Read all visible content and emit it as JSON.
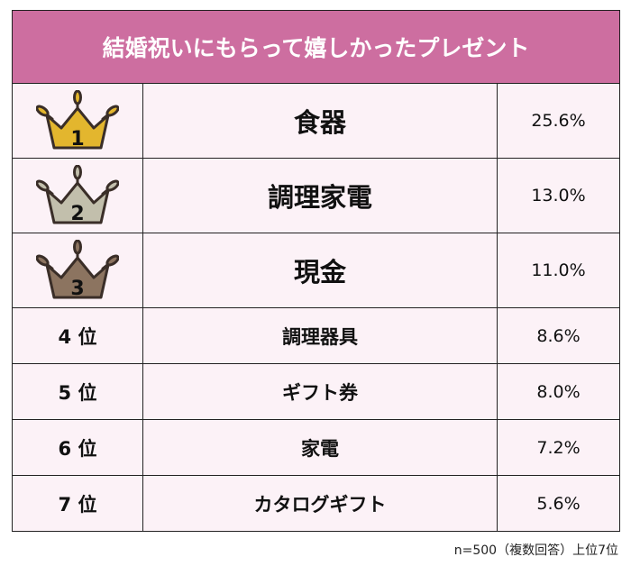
{
  "title": "結婚祝いにもらって嬉しかったプレゼント",
  "colors": {
    "header": "#cd6ea0",
    "cell_bg": "#fcf2f7",
    "gold": "#e3b62e",
    "silver": "#c2bfac",
    "bronze": "#8c7460"
  },
  "rows": [
    {
      "rank": "1",
      "rank_icon": "crown-gold-icon",
      "item": "食器",
      "percent": "25.6%"
    },
    {
      "rank": "2",
      "rank_icon": "crown-silver-icon",
      "item": "調理家電",
      "percent": "13.0%"
    },
    {
      "rank": "3",
      "rank_icon": "crown-bronze-icon",
      "item": "現金",
      "percent": "11.0%"
    },
    {
      "rank": "4 位",
      "item": "調理器具",
      "percent": "8.6%"
    },
    {
      "rank": "5 位",
      "item": "ギフト券",
      "percent": "8.0%"
    },
    {
      "rank": "6 位",
      "item": "家電",
      "percent": "7.2%"
    },
    {
      "rank": "7 位",
      "item": "カタログギフト",
      "percent": "5.6%"
    }
  ],
  "note": "n=500（複数回答）上位7位",
  "chart_data": {
    "type": "table",
    "title": "結婚祝いにもらって嬉しかったプレゼント",
    "categories": [
      "食器",
      "調理家電",
      "現金",
      "調理器具",
      "ギフト券",
      "家電",
      "カタログギフト"
    ],
    "values": [
      25.6,
      13.0,
      11.0,
      8.6,
      8.0,
      7.2,
      5.6
    ],
    "unit": "%"
  }
}
